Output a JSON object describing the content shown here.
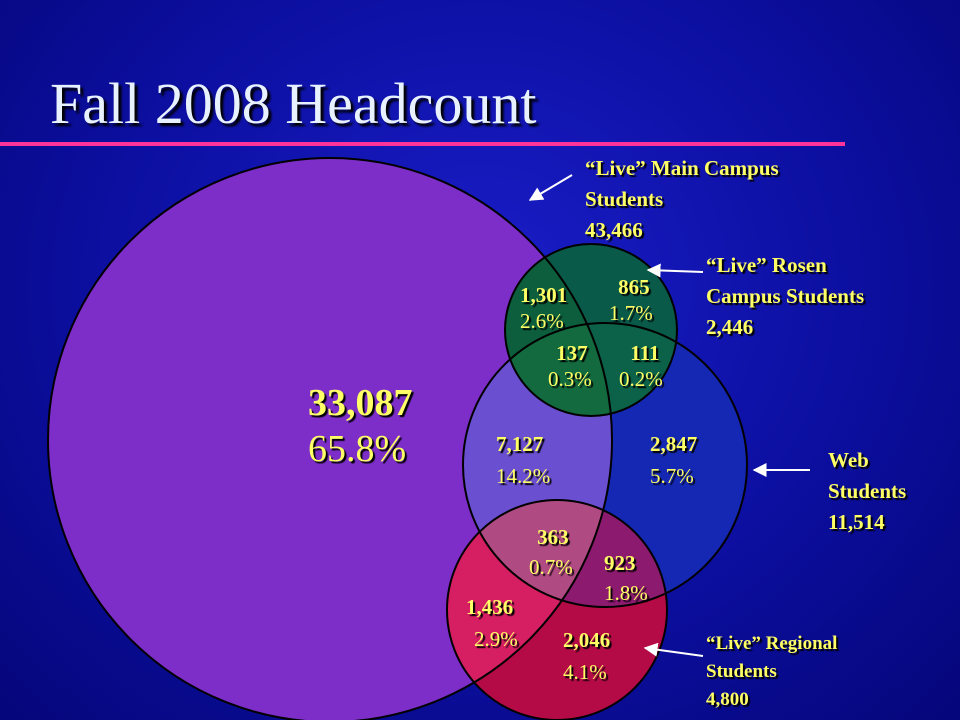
{
  "title": "Fall 2008 Headcount",
  "colors": {
    "main_campus": "#7d2ec8",
    "rosen": "#0a5a4a",
    "web": "#1428b4",
    "regional": "#b40b46",
    "label_text": "#ffff66",
    "title_rule": "#ff3399"
  },
  "callouts": {
    "main": {
      "line1": "“Live” Main Campus",
      "line2": "Students",
      "total": "43,466"
    },
    "rosen": {
      "line1": "“Live” Rosen",
      "line2": "Campus Students",
      "total": "2,446"
    },
    "web": {
      "line1": "Web",
      "line2": "Students",
      "total": "11,514"
    },
    "regional": {
      "line1": "“Live” Regional",
      "line2": "Students",
      "total": "4,800"
    }
  },
  "regions": {
    "main_only": {
      "count": "33,087",
      "pct": "65.8%"
    },
    "main_rosen": {
      "count": "1,301",
      "pct": "2.6%"
    },
    "rosen_only": {
      "count": "865",
      "pct": "1.7%"
    },
    "main_rosen_web": {
      "count": "137",
      "pct": "0.3%"
    },
    "rosen_web": {
      "count": "111",
      "pct": "0.2%"
    },
    "main_web": {
      "count": "7,127",
      "pct": "14.2%"
    },
    "web_only": {
      "count": "2,847",
      "pct": "5.7%"
    },
    "main_web_regional": {
      "count": "363",
      "pct": "0.7%"
    },
    "web_regional": {
      "count": "923",
      "pct": "1.8%"
    },
    "main_regional": {
      "count": "1,436",
      "pct": "2.9%"
    },
    "regional_only": {
      "count": "2,046",
      "pct": "4.1%"
    }
  }
}
